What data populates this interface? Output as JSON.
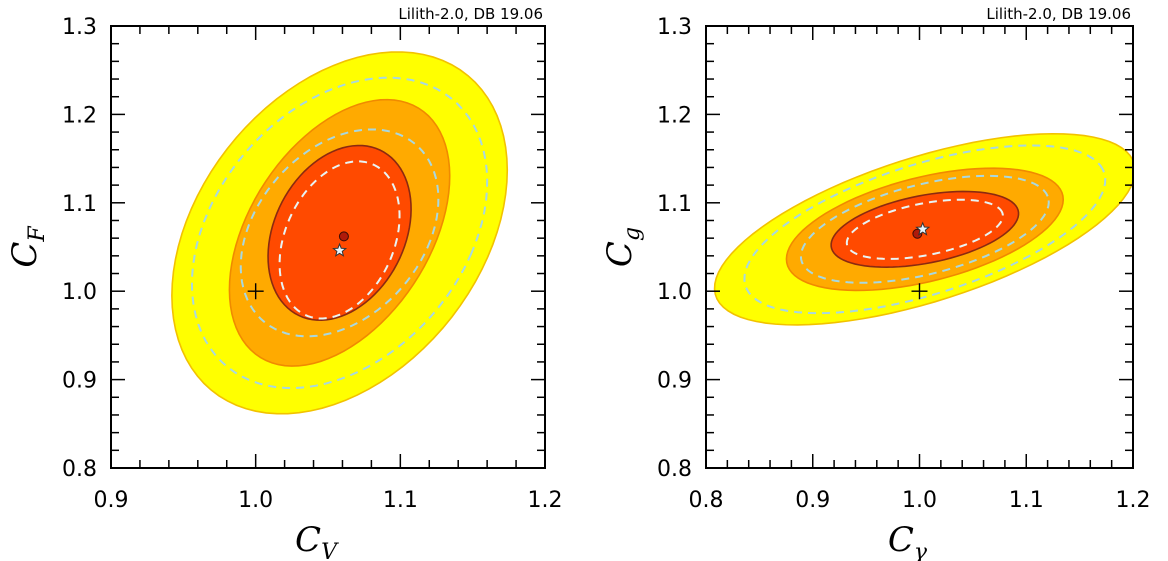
{
  "chart_data": [
    {
      "type": "contour",
      "annotation": "Lilith-2.0, DB 19.06",
      "xlabel": {
        "main": "C",
        "sub": "V"
      },
      "ylabel": {
        "main": "C",
        "sub": "F"
      },
      "xlim": [
        0.9,
        1.2
      ],
      "ylim": [
        0.8,
        1.3
      ],
      "xticks": [
        "0.9",
        "1.0",
        "1.1",
        "1.2"
      ],
      "yticks": [
        "0.8",
        "0.9",
        "1.0",
        "1.1",
        "1.2",
        "1.3"
      ],
      "regions": [
        {
          "level": "3sigma",
          "color": "#ffff00",
          "edge": "#f2c200",
          "center": [
            1.058,
            1.066
          ],
          "a": 0.106,
          "b": 0.21,
          "angle": -15
        },
        {
          "level": "2sigma",
          "color": "#ffaa00",
          "edge": "#f08a00",
          "center": [
            1.058,
            1.066
          ],
          "a": 0.067,
          "b": 0.155,
          "angle": -15
        },
        {
          "level": "1sigma",
          "color": "#ff4a00",
          "edge": "#8b2a10",
          "center": [
            1.058,
            1.066
          ],
          "a": 0.047,
          "b": 0.1,
          "angle": -10
        }
      ],
      "dashed_contours": [
        {
          "color": "#a8d8e0",
          "center": [
            1.058,
            1.066
          ],
          "a": 0.094,
          "b": 0.18,
          "angle": -15
        },
        {
          "color": "#a8d8e0",
          "center": [
            1.058,
            1.066
          ],
          "a": 0.063,
          "b": 0.12,
          "angle": -15
        },
        {
          "color": "#e8f4f4",
          "center": [
            1.058,
            1.058
          ],
          "a": 0.039,
          "b": 0.09,
          "angle": -10
        }
      ],
      "best_fit": {
        "x": 1.061,
        "y": 1.062
      },
      "star": {
        "x": 1.058,
        "y": 1.046
      },
      "sm_point": {
        "x": 1.0,
        "y": 1.0
      }
    },
    {
      "type": "contour",
      "annotation": "Lilith-2.0, DB 19.06",
      "xlabel": {
        "main": "C",
        "sub": "γ"
      },
      "ylabel": {
        "main": "C",
        "sub": "g"
      },
      "xlim": [
        0.8,
        1.2
      ],
      "ylim": [
        0.8,
        1.3
      ],
      "xticks": [
        "0.8",
        "0.9",
        "1.0",
        "1.1",
        "1.2"
      ],
      "yticks": [
        "0.8",
        "0.9",
        "1.0",
        "1.1",
        "1.2",
        "1.3"
      ],
      "regions": [
        {
          "level": "3sigma",
          "color": "#ffff00",
          "edge": "#f2c200",
          "center": [
            1.005,
            1.07
          ],
          "a": 0.21,
          "b": 0.08,
          "angle": 22
        },
        {
          "level": "2sigma",
          "color": "#ffaa00",
          "edge": "#f08a00",
          "center": [
            1.005,
            1.07
          ],
          "a": 0.135,
          "b": 0.058,
          "angle": 18
        },
        {
          "level": "1sigma",
          "color": "#ff4a00",
          "edge": "#8b2a10",
          "center": [
            1.005,
            1.07
          ],
          "a": 0.09,
          "b": 0.038,
          "angle": 14
        }
      ],
      "dashed_contours": [
        {
          "color": "#a8d8e0",
          "center": [
            1.005,
            1.07
          ],
          "a": 0.18,
          "b": 0.072,
          "angle": 22
        },
        {
          "color": "#a8d8e0",
          "center": [
            1.005,
            1.07
          ],
          "a": 0.121,
          "b": 0.05,
          "angle": 18
        },
        {
          "color": "#e8f4f4",
          "center": [
            1.005,
            1.07
          ],
          "a": 0.075,
          "b": 0.029,
          "angle": 14
        }
      ],
      "best_fit": {
        "x": 0.998,
        "y": 1.065
      },
      "star": {
        "x": 1.003,
        "y": 1.07
      },
      "sm_point": {
        "x": 1.0,
        "y": 1.0
      }
    }
  ]
}
